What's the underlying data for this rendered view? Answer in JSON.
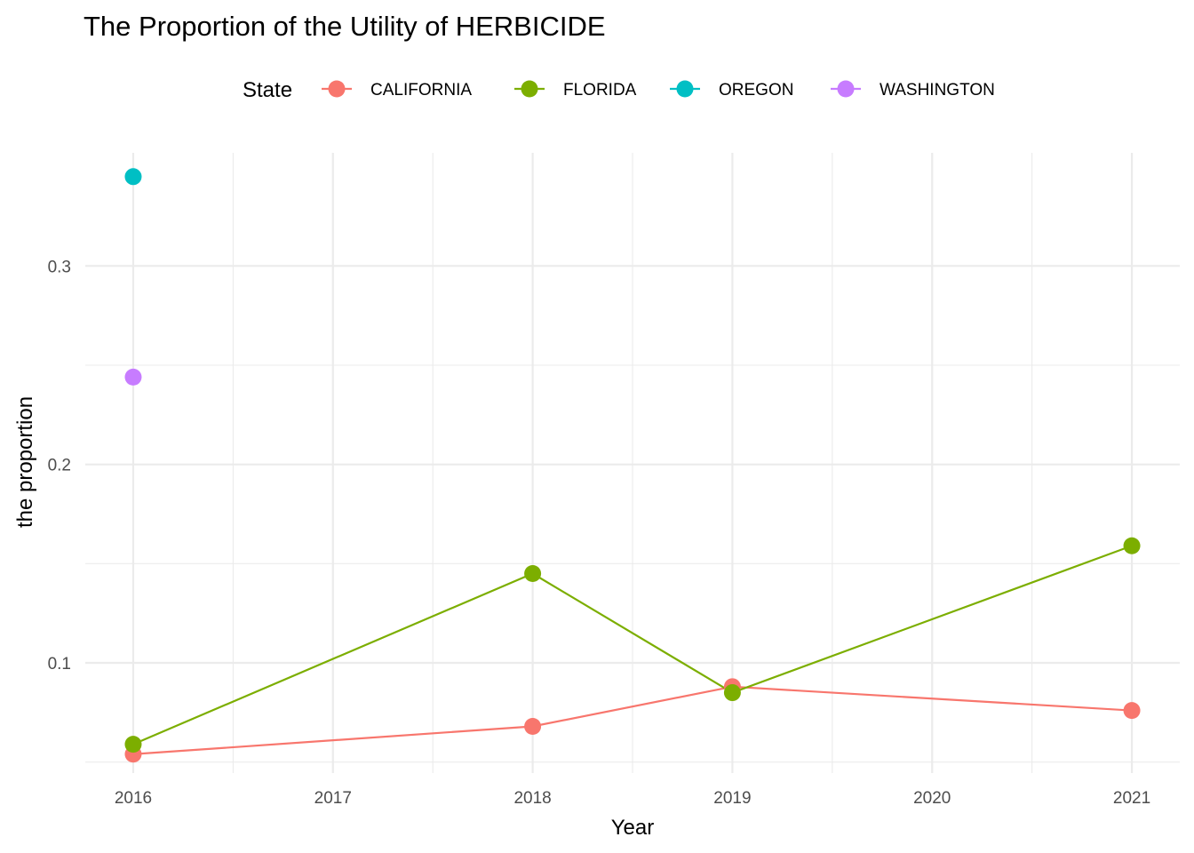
{
  "chart_data": {
    "type": "line",
    "title": "The Proportion of the Utility of HERBICIDE",
    "xlabel": "Year",
    "ylabel": "the proportion",
    "x_ticks": [
      "2016",
      "2017",
      "2018",
      "2019",
      "2020",
      "2021"
    ],
    "y_ticks": [
      "0.1",
      "0.2",
      "0.3"
    ],
    "xlim": [
      2015.76,
      2021.24
    ],
    "ylim": [
      0.0445,
      0.357
    ],
    "grid": true,
    "legend": {
      "title": "State",
      "position": "top"
    },
    "series": [
      {
        "name": "CALIFORNIA",
        "color": "#F8766D",
        "points": [
          [
            2016,
            0.054
          ],
          [
            2018,
            0.068
          ],
          [
            2019,
            0.088
          ],
          [
            2021,
            0.076
          ]
        ]
      },
      {
        "name": "FLORIDA",
        "color": "#7CAE00",
        "points": [
          [
            2016,
            0.059
          ],
          [
            2018,
            0.145
          ],
          [
            2019,
            0.085
          ],
          [
            2021,
            0.159
          ]
        ]
      },
      {
        "name": "OREGON",
        "color": "#00BFC4",
        "points": [
          [
            2016,
            0.345
          ]
        ]
      },
      {
        "name": "WASHINGTON",
        "color": "#C77CFF",
        "points": [
          [
            2016,
            0.244
          ]
        ]
      }
    ]
  }
}
